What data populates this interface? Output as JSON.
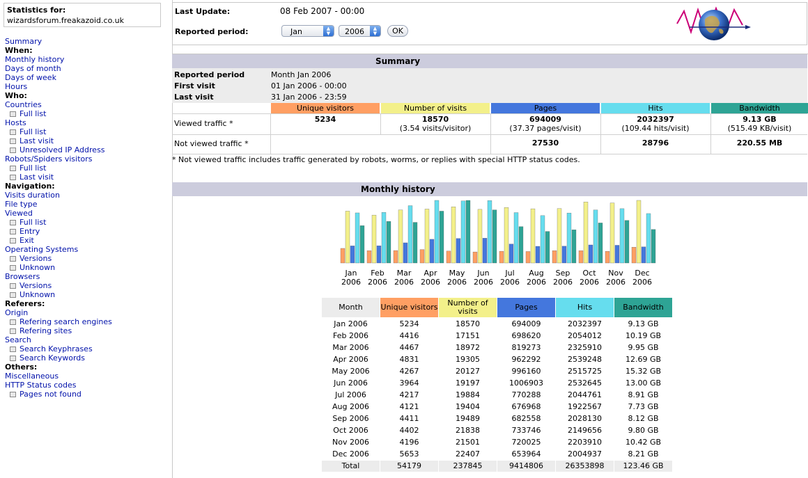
{
  "sidebar": {
    "stats_label": "Statistics for:",
    "site": "wizardsforum.freakazoid.co.uk",
    "menu": [
      {
        "text": "Summary",
        "kind": "lnk"
      },
      {
        "text": "When:",
        "kind": "sec"
      },
      {
        "text": "Monthly history",
        "kind": "lnk"
      },
      {
        "text": "Days of month",
        "kind": "lnk"
      },
      {
        "text": "Days of week",
        "kind": "lnk"
      },
      {
        "text": "Hours",
        "kind": "lnk"
      },
      {
        "text": "Who:",
        "kind": "sec"
      },
      {
        "text": "Countries",
        "kind": "lnk"
      },
      {
        "text": "Full list",
        "kind": "sub"
      },
      {
        "text": "Hosts",
        "kind": "lnk"
      },
      {
        "text": "Full list",
        "kind": "sub"
      },
      {
        "text": "Last visit",
        "kind": "sub"
      },
      {
        "text": "Unresolved IP Address",
        "kind": "sub"
      },
      {
        "text": "Robots/Spiders visitors",
        "kind": "lnk"
      },
      {
        "text": "Full list",
        "kind": "sub"
      },
      {
        "text": "Last visit",
        "kind": "sub"
      },
      {
        "text": "Navigation:",
        "kind": "sec"
      },
      {
        "text": "Visits duration",
        "kind": "lnk"
      },
      {
        "text": "File type",
        "kind": "lnk"
      },
      {
        "text": "Viewed",
        "kind": "lnk"
      },
      {
        "text": "Full list",
        "kind": "sub"
      },
      {
        "text": "Entry",
        "kind": "sub"
      },
      {
        "text": "Exit",
        "kind": "sub"
      },
      {
        "text": "Operating Systems",
        "kind": "lnk"
      },
      {
        "text": "Versions",
        "kind": "sub"
      },
      {
        "text": "Unknown",
        "kind": "sub"
      },
      {
        "text": "Browsers",
        "kind": "lnk"
      },
      {
        "text": "Versions",
        "kind": "sub"
      },
      {
        "text": "Unknown",
        "kind": "sub"
      },
      {
        "text": "Referers:",
        "kind": "sec"
      },
      {
        "text": "Origin",
        "kind": "lnk"
      },
      {
        "text": "Refering search engines",
        "kind": "sub"
      },
      {
        "text": "Refering sites",
        "kind": "sub"
      },
      {
        "text": "Search",
        "kind": "lnk"
      },
      {
        "text": "Search Keyphrases",
        "kind": "sub"
      },
      {
        "text": "Search Keywords",
        "kind": "sub"
      },
      {
        "text": "Others:",
        "kind": "sec"
      },
      {
        "text": "Miscellaneous",
        "kind": "lnk"
      },
      {
        "text": "HTTP Status codes",
        "kind": "lnk"
      },
      {
        "text": "Pages not found",
        "kind": "sub"
      }
    ]
  },
  "header": {
    "last_update_label": "Last Update:",
    "last_update_value": "08 Feb 2007 - 00:00",
    "period_label": "Reported period:",
    "month_select": "Jan",
    "year_select": "2006",
    "ok_label": "OK",
    "logo_icon": "awstats-globe-icon"
  },
  "summary": {
    "title": "Summary",
    "reported_period_label": "Reported period",
    "reported_period_value": "Month Jan 2006",
    "first_visit_label": "First visit",
    "first_visit_value": "01 Jan 2006 - 00:00",
    "last_visit_label": "Last visit",
    "last_visit_value": "31 Jan 2006 - 23:59",
    "columns": [
      "Unique visitors",
      "Number of visits",
      "Pages",
      "Hits",
      "Bandwidth"
    ],
    "viewed_label": "Viewed traffic *",
    "viewed": [
      "5234",
      "18570",
      "694009",
      "2032397",
      "9.13 GB"
    ],
    "viewed_sub": [
      "",
      "(3.54 visits/visitor)",
      "(37.37 pages/visit)",
      "(109.44 hits/visit)",
      "(515.49 KB/visit)"
    ],
    "not_viewed_label": "Not viewed traffic *",
    "not_viewed": [
      "",
      "",
      "27530",
      "28796",
      "220.55 MB"
    ],
    "footnote": "* Not viewed traffic includes traffic generated by robots, worms, or replies with special HTTP status codes."
  },
  "colors": {
    "visitors": "#ff9f63",
    "visits": "#f3f08a",
    "pages": "#4477dd",
    "hits": "#66ddee",
    "bandwidth": "#2ea495",
    "section_bg": "#ccccdd"
  },
  "monthly": {
    "title": "Monthly history",
    "header": [
      "Month",
      "Unique visitors",
      "Number of visits",
      "Pages",
      "Hits",
      "Bandwidth"
    ],
    "rows": [
      [
        "Jan 2006",
        "5234",
        "18570",
        "694009",
        "2032397",
        "9.13 GB"
      ],
      [
        "Feb 2006",
        "4416",
        "17151",
        "698620",
        "2054012",
        "10.19 GB"
      ],
      [
        "Mar 2006",
        "4467",
        "18972",
        "819273",
        "2325910",
        "9.95 GB"
      ],
      [
        "Apr 2006",
        "4831",
        "19305",
        "962292",
        "2539248",
        "12.69 GB"
      ],
      [
        "May 2006",
        "4267",
        "20127",
        "996160",
        "2515725",
        "15.32 GB"
      ],
      [
        "Jun 2006",
        "3964",
        "19197",
        "1006903",
        "2532645",
        "13.00 GB"
      ],
      [
        "Jul 2006",
        "4217",
        "19884",
        "770288",
        "2044761",
        "8.91 GB"
      ],
      [
        "Aug 2006",
        "4121",
        "19404",
        "676968",
        "1922567",
        "7.73 GB"
      ],
      [
        "Sep 2006",
        "4411",
        "19489",
        "682558",
        "2028130",
        "8.12 GB"
      ],
      [
        "Oct 2006",
        "4402",
        "21838",
        "733746",
        "2149656",
        "9.80 GB"
      ],
      [
        "Nov 2006",
        "4196",
        "21501",
        "720025",
        "2203910",
        "10.42 GB"
      ],
      [
        "Dec 2006",
        "5653",
        "22407",
        "653964",
        "2004937",
        "8.21 GB"
      ]
    ],
    "total": [
      "Total",
      "54179",
      "237845",
      "9414806",
      "26353898",
      "123.46 GB"
    ]
  },
  "chart_data": {
    "type": "bar",
    "categories": [
      "Jan 2006",
      "Feb 2006",
      "Mar 2006",
      "Apr 2006",
      "May 2006",
      "Jun 2006",
      "Jul 2006",
      "Aug 2006",
      "Sep 2006",
      "Oct 2006",
      "Nov 2006",
      "Dec 2006"
    ],
    "month_labels": [
      "Jan",
      "Feb",
      "Mar",
      "Apr",
      "May",
      "Jun",
      "Jul",
      "Aug",
      "Sep",
      "Oct",
      "Nov",
      "Dec"
    ],
    "year_labels": [
      "2006",
      "2006",
      "2006",
      "2006",
      "2006",
      "2006",
      "2006",
      "2006",
      "2006",
      "2006",
      "2006",
      "2006"
    ],
    "series": [
      {
        "name": "Unique visitors",
        "values": [
          5234,
          4416,
          4467,
          4831,
          4267,
          3964,
          4217,
          4121,
          4411,
          4402,
          4196,
          5653
        ]
      },
      {
        "name": "Number of visits",
        "values": [
          18570,
          17151,
          18972,
          19305,
          20127,
          19197,
          19884,
          19404,
          19489,
          21838,
          21501,
          22407
        ]
      },
      {
        "name": "Pages",
        "values": [
          694009,
          698620,
          819273,
          962292,
          996160,
          1006903,
          770288,
          676968,
          682558,
          733746,
          720025,
          653964
        ]
      },
      {
        "name": "Hits",
        "values": [
          2032397,
          2054012,
          2325910,
          2539248,
          2515725,
          2532645,
          2044761,
          1922567,
          2028130,
          2149656,
          2203910,
          2004937
        ]
      },
      {
        "name": "Bandwidth (GB)",
        "values": [
          9.13,
          10.19,
          9.95,
          12.69,
          15.32,
          13.0,
          8.91,
          7.73,
          8.12,
          9.8,
          10.42,
          8.21
        ]
      }
    ]
  }
}
